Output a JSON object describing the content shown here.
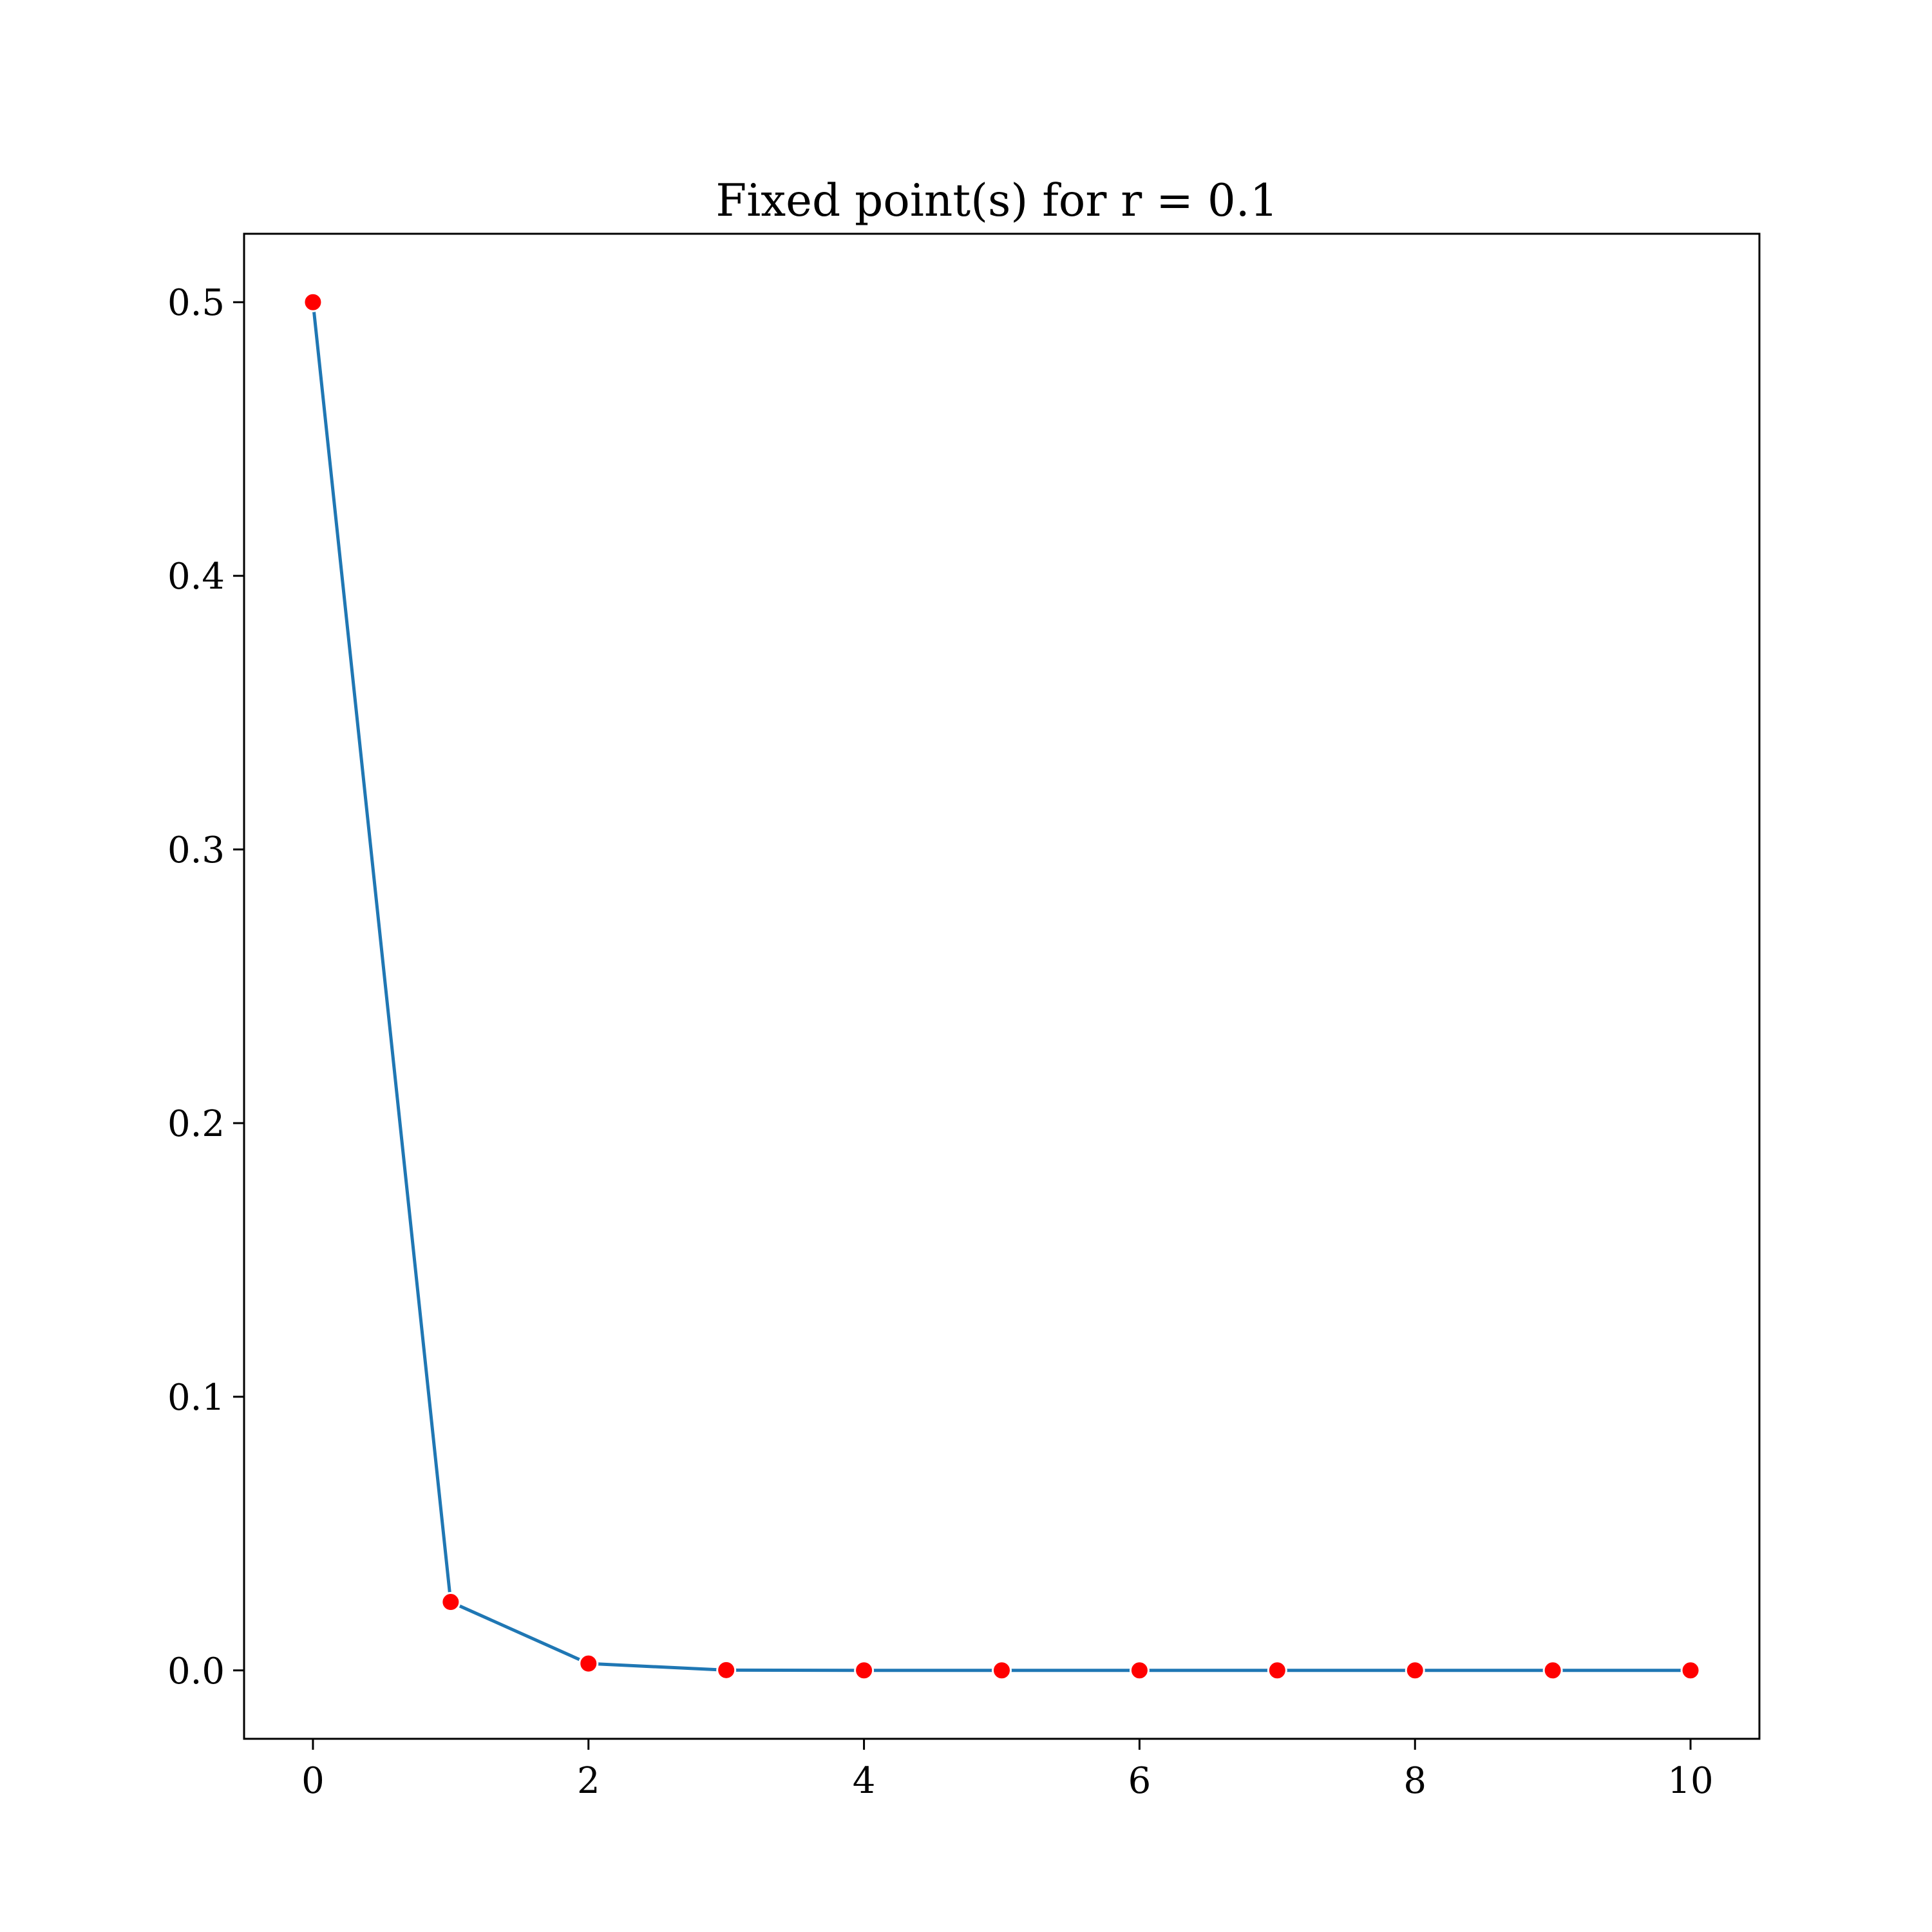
{
  "chart_data": {
    "type": "line",
    "title": "Fixed point(s) for r = 0.1",
    "xlabel": "",
    "ylabel": "",
    "x": [
      0,
      1,
      2,
      3,
      4,
      5,
      6,
      7,
      8,
      9,
      10
    ],
    "series": [
      {
        "values": [
          0.5,
          0.025,
          0.0025,
          0.0001,
          0.0,
          0.0,
          0.0,
          0.0,
          0.0,
          0.0,
          0.0
        ],
        "line_color": "#1f77b4",
        "marker_color": "#ff0000",
        "marker_edge_color": "#ffffff"
      }
    ],
    "xlim": [
      -0.5,
      10.5
    ],
    "ylim": [
      -0.025,
      0.525
    ],
    "xticks": [
      0,
      2,
      4,
      6,
      8,
      10
    ],
    "xtick_labels": [
      "0",
      "2",
      "4",
      "6",
      "8",
      "10"
    ],
    "yticks": [
      0.0,
      0.1,
      0.2,
      0.3,
      0.4,
      0.5
    ],
    "ytick_labels": [
      "0.0",
      "0.1",
      "0.2",
      "0.3",
      "0.4",
      "0.5"
    ],
    "grid": false,
    "legend": false
  }
}
